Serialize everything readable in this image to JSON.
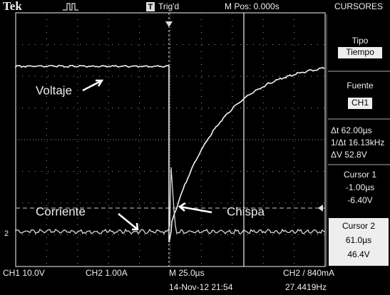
{
  "header": {
    "brand": "Tek",
    "trigger_icon": "T",
    "trigger": "Trig'd",
    "position": "M Pos: 0.000s",
    "menu": "CURSORES"
  },
  "annotations": {
    "voltage": "Voltaje",
    "current": "Corriente",
    "spark": "Chispa",
    "ground_marker": "2"
  },
  "menu": {
    "type_label": "Tipo",
    "type_value": "Tiempo",
    "source_label": "Fuente",
    "source_value": "CH1",
    "delta_t": "Δt 62.00µs",
    "inverse_delta_t": "1/Δt 16.13kHz",
    "delta_v": "ΔV 52.8V",
    "cursor1": {
      "title": "Cursor 1",
      "time": "-1.00µs",
      "voltage": "-6.40V"
    },
    "cursor2": {
      "title": "Cursor 2",
      "time": "61.0µs",
      "voltage": "46.4V"
    }
  },
  "footer": {
    "ch1": "CH1 10.0V",
    "ch2": "CH2 1.00A",
    "timebase": "M 25.0µs",
    "trigger": "CH2 / 840mA",
    "date": "14-Nov-12 21:54",
    "frequency": "27.4419Hz"
  }
}
